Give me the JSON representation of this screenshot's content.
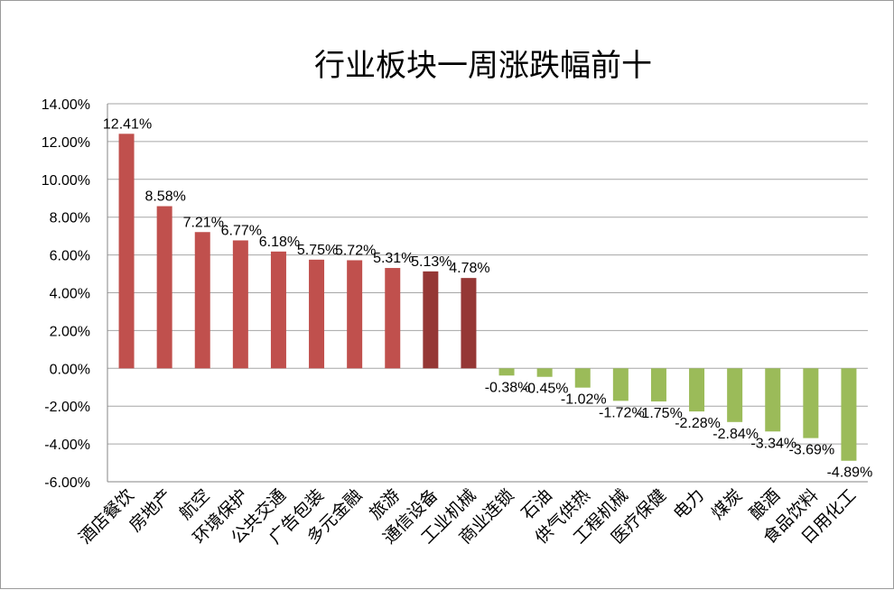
{
  "chart_data": {
    "type": "bar",
    "title": "行业板块一周涨跌幅前十",
    "xlabel": "",
    "ylabel": "",
    "ylim": [
      -6,
      14
    ],
    "yticks": [
      "14.00%",
      "12.00%",
      "10.00%",
      "8.00%",
      "6.00%",
      "4.00%",
      "2.00%",
      "0.00%",
      "-2.00%",
      "-4.00%",
      "-6.00%"
    ],
    "ytick_values": [
      14,
      12,
      10,
      8,
      6,
      4,
      2,
      0,
      -2,
      -4,
      -6
    ],
    "grid": true,
    "categories": [
      "酒店餐饮",
      "房地产",
      "航空",
      "环境保护",
      "公共交通",
      "广告包装",
      "多元金融",
      "旅游",
      "通信设备",
      "工业机械",
      "商业连锁",
      "石油",
      "供气供热",
      "工程机械",
      "医疗保健",
      "电力",
      "煤炭",
      "酿酒",
      "食品饮料",
      "日用化工"
    ],
    "values": [
      12.41,
      8.58,
      7.21,
      6.77,
      6.18,
      5.75,
      5.72,
      5.31,
      5.13,
      4.78,
      -0.38,
      -0.45,
      -1.02,
      -1.72,
      -1.75,
      -2.28,
      -2.84,
      -3.34,
      -3.69,
      -4.89
    ],
    "value_labels": [
      "12.41%",
      "8.58%",
      "7.21%",
      "6.77%",
      "6.18%",
      "5.75%",
      "5.72%",
      "5.31%",
      "5.13%",
      "4.78%",
      "-0.38%",
      "-0.45%",
      "-1.02%",
      "-1.72%",
      "-1.75%",
      "-2.28%",
      "-2.84%",
      "-3.34%",
      "-3.69%",
      "-4.89%"
    ],
    "colors": {
      "positive": "#c0504d",
      "positive_dark": "#953735",
      "negative": "#9bbb59",
      "grid": "#a6a6a6",
      "axis": "#868686"
    },
    "dark_bar_categories": [
      "通信设备",
      "工业机械"
    ]
  }
}
